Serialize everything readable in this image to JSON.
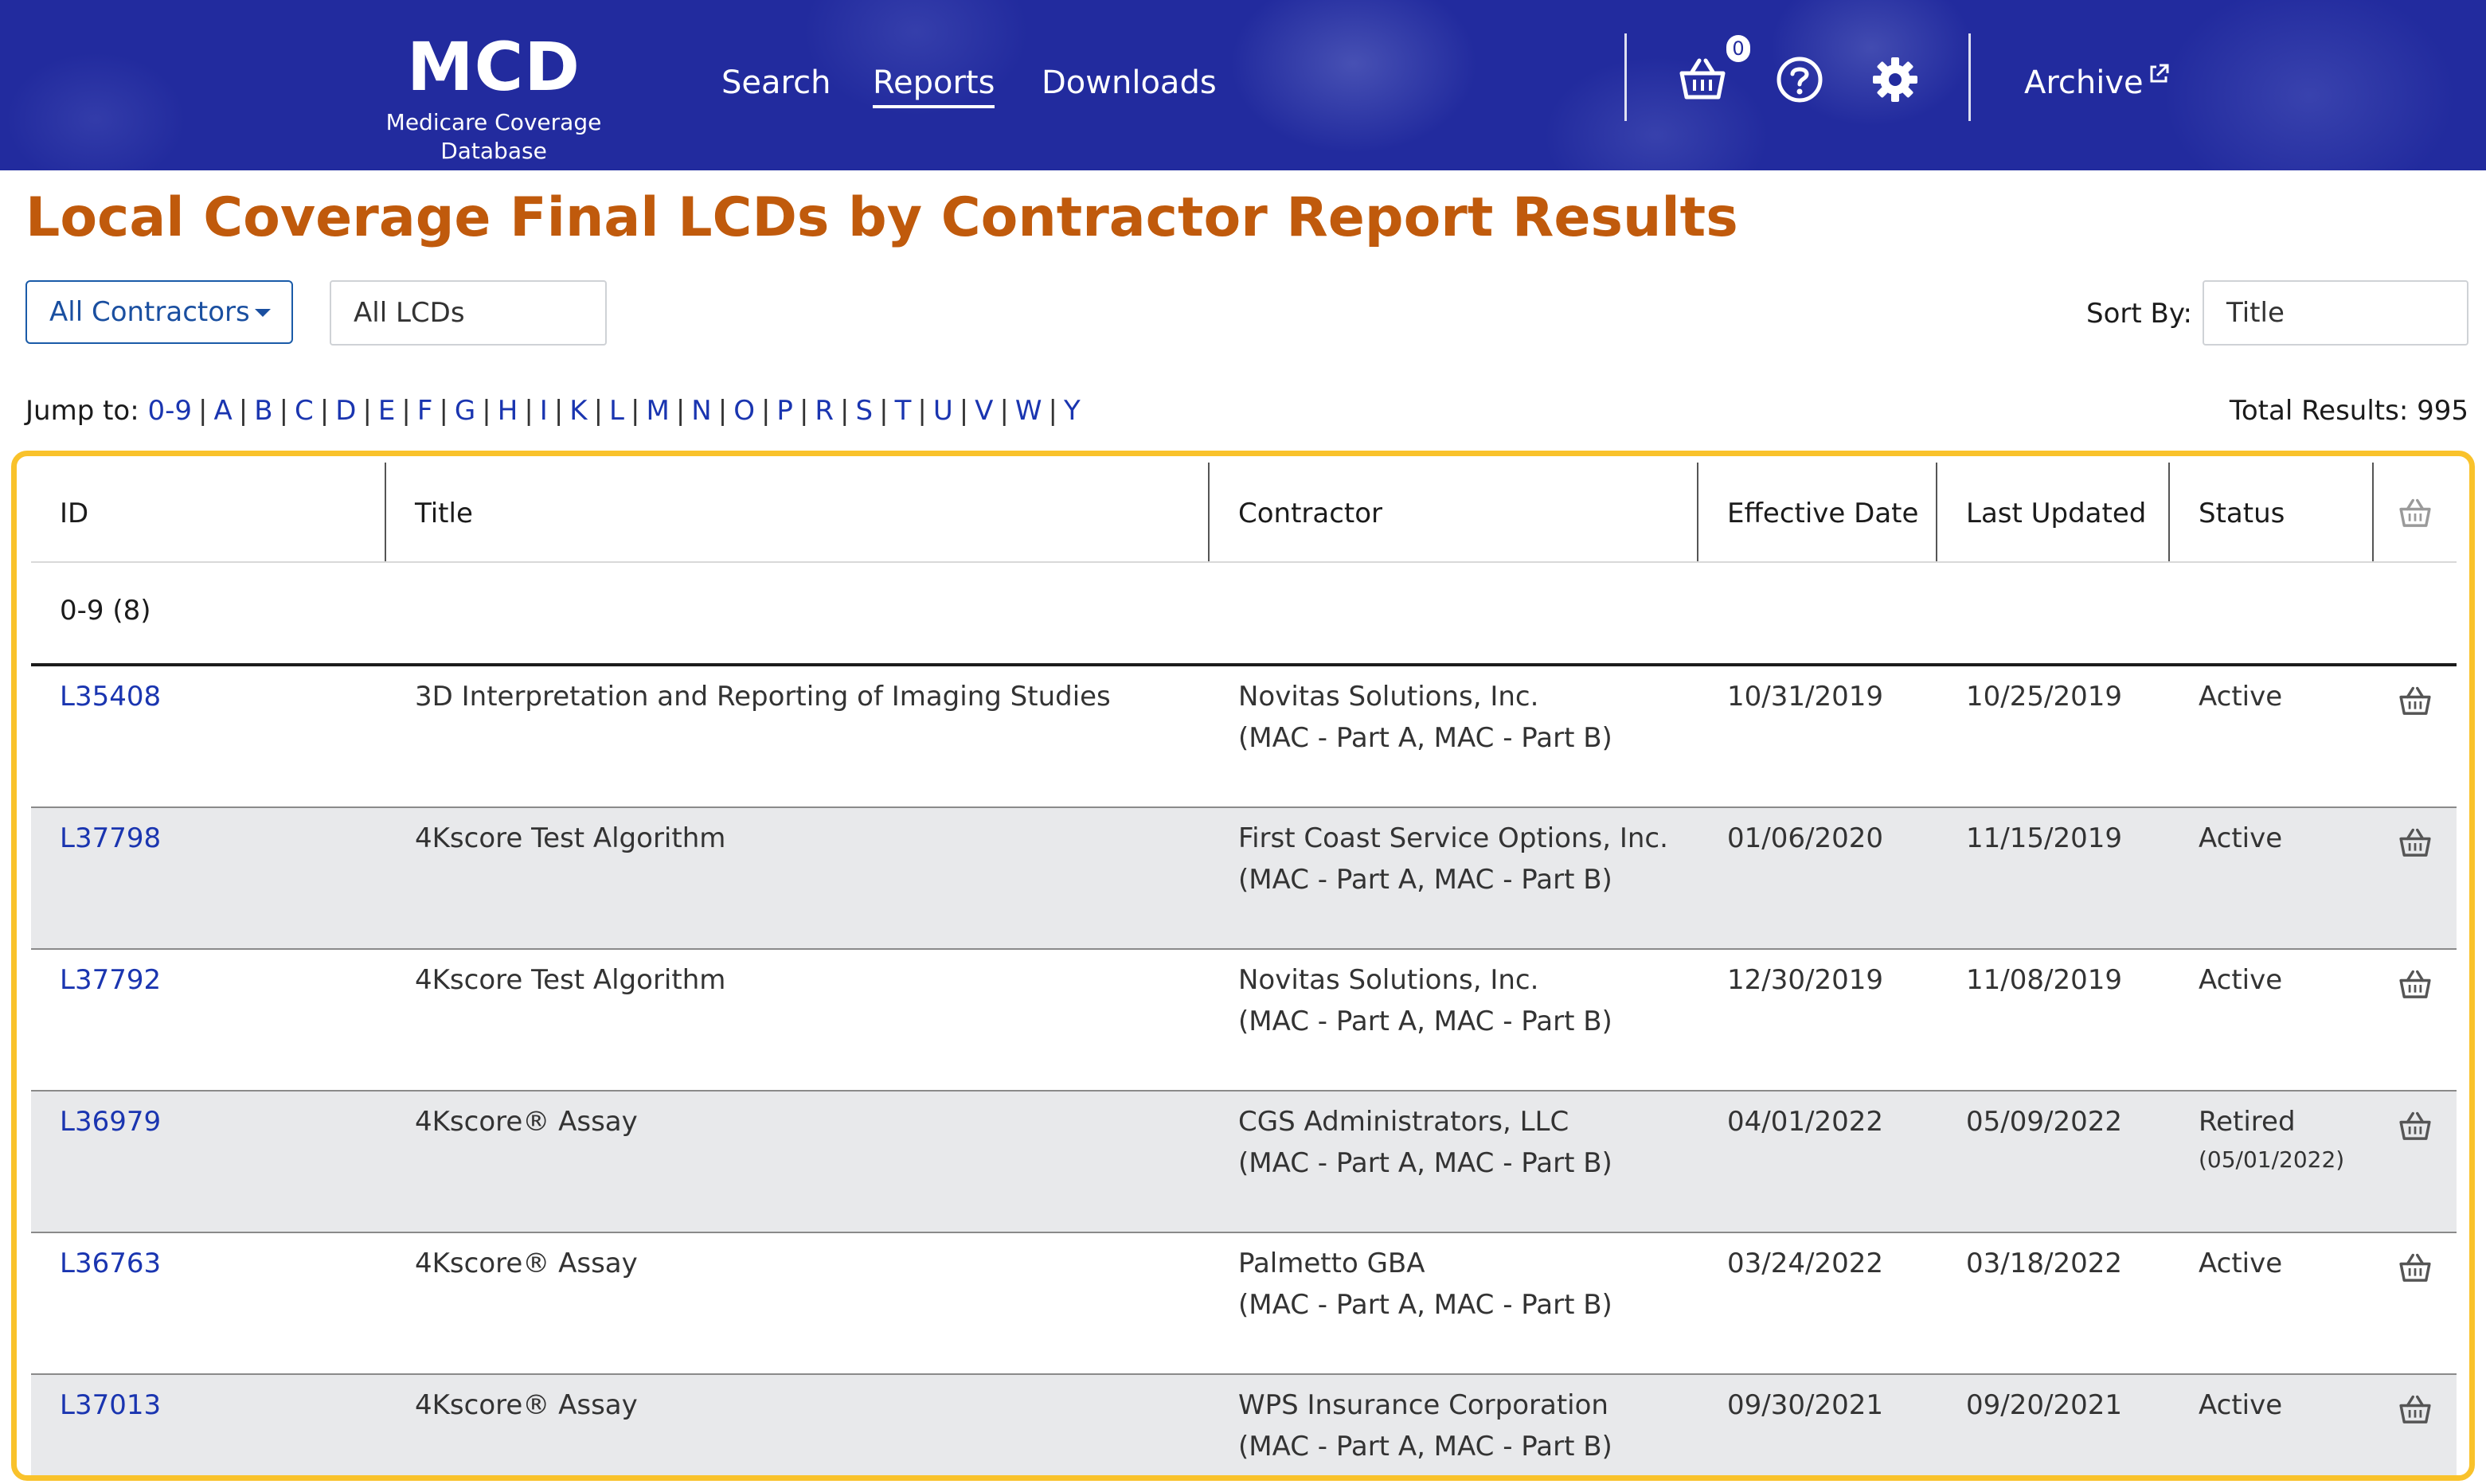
{
  "header": {
    "logo_title": "MCD",
    "logo_subtitle": "Medicare Coverage Database",
    "nav": {
      "search": "Search",
      "reports": "Reports",
      "downloads": "Downloads"
    },
    "cart_count": "0",
    "archive": "Archive",
    "icons": [
      "basket-icon",
      "help-icon",
      "gear-icon",
      "external-link-icon"
    ]
  },
  "page_title": "Local Coverage Final LCDs by Contractor Report Results",
  "filters": {
    "contractor_dropdown": "All Contractors",
    "lcd_filter_value": "All LCDs",
    "sort_by_label": "Sort By:",
    "sort_by_value": "Title"
  },
  "jump": {
    "label": "Jump to:",
    "letters": [
      "0-9",
      "A",
      "B",
      "C",
      "D",
      "E",
      "F",
      "G",
      "H",
      "I",
      "K",
      "L",
      "M",
      "N",
      "O",
      "P",
      "R",
      "S",
      "T",
      "U",
      "V",
      "W",
      "Y"
    ]
  },
  "total_results": "Total Results: 995",
  "table": {
    "headers": {
      "id": "ID",
      "title": "Title",
      "contractor": "Contractor",
      "effective": "Effective Date",
      "updated": "Last Updated",
      "status": "Status"
    },
    "group_label": "0-9 (8)",
    "rows": [
      {
        "id": "L35408",
        "title": "3D Interpretation and Reporting of Imaging Studies",
        "contractor": "Novitas Solutions, Inc.",
        "contractor_type": "(MAC - Part A, MAC - Part B)",
        "effective": "10/31/2019",
        "updated": "10/25/2019",
        "status": "Active",
        "status_note": ""
      },
      {
        "id": "L37798",
        "title": "4Kscore Test Algorithm",
        "contractor": "First Coast Service Options, Inc.",
        "contractor_type": "(MAC - Part A, MAC - Part B)",
        "effective": "01/06/2020",
        "updated": "11/15/2019",
        "status": "Active",
        "status_note": ""
      },
      {
        "id": "L37792",
        "title": "4Kscore Test Algorithm",
        "contractor": "Novitas Solutions, Inc.",
        "contractor_type": "(MAC - Part A, MAC - Part B)",
        "effective": "12/30/2019",
        "updated": "11/08/2019",
        "status": "Active",
        "status_note": ""
      },
      {
        "id": "L36979",
        "title": "4Kscore® Assay",
        "contractor": "CGS Administrators, LLC",
        "contractor_type": "(MAC - Part A, MAC - Part B)",
        "effective": "04/01/2022",
        "updated": "05/09/2022",
        "status": "Retired",
        "status_note": "(05/01/2022)"
      },
      {
        "id": "L36763",
        "title": "4Kscore® Assay",
        "contractor": "Palmetto GBA",
        "contractor_type": "(MAC - Part A, MAC - Part B)",
        "effective": "03/24/2022",
        "updated": "03/18/2022",
        "status": "Active",
        "status_note": ""
      },
      {
        "id": "L37013",
        "title": "4Kscore® Assay",
        "contractor": "WPS Insurance Corporation",
        "contractor_type": "(MAC - Part A, MAC - Part B)",
        "effective": "09/30/2021",
        "updated": "09/20/2021",
        "status": "Active",
        "status_note": ""
      }
    ]
  },
  "colors": {
    "header_bg": "#222b9e",
    "title": "#c05a0c",
    "link": "#1a35b0",
    "highlight_border": "#f9c22b",
    "row_shade": "#e8e9eb"
  }
}
